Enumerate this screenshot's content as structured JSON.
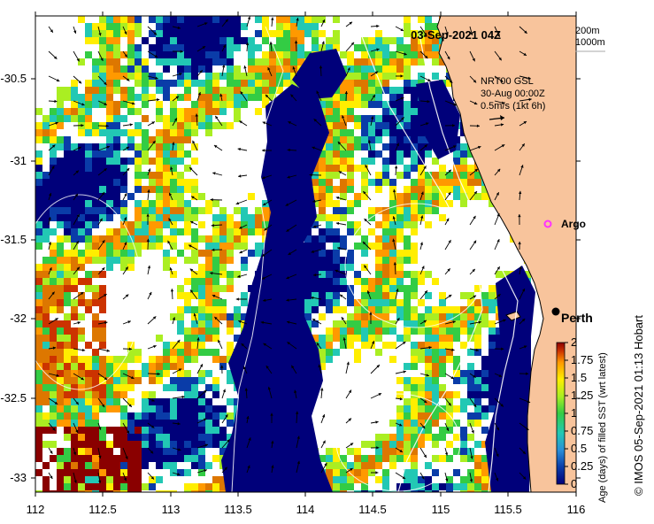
{
  "map": {
    "timestamp": "03-Sep-2021 04Z",
    "depth_contours": [
      "200m",
      "1000m"
    ],
    "current_source": "NRT00 GSL",
    "current_time": "30-Aug 00:00Z",
    "current_scale_label": "0.5m/s (1kt 6h)",
    "places": {
      "argo": "Argo",
      "perth": "Perth"
    },
    "credit": "© IMOS 05-Sep-2021 01:13 Hobart",
    "colorbar": {
      "label": "Age (days) of filled SST (wrt latest)",
      "min": 0,
      "max": 2,
      "ticks": [
        "2",
        "1.75",
        "1.5",
        "1.25",
        "1",
        "0.75",
        "0.5",
        "0.25",
        "0"
      ],
      "colors": [
        "#00007a",
        "#0a3ca8",
        "#2a8fd8",
        "#22c8b4",
        "#33cc44",
        "#aaee22",
        "#ffee00",
        "#ff9900",
        "#cc3300",
        "#8a0000"
      ]
    },
    "x_axis": {
      "ticks": [
        "112",
        "112.5",
        "113",
        "113.5",
        "114",
        "114.5",
        "115",
        "115.5",
        "116"
      ]
    },
    "y_axis": {
      "ticks": [
        "-30.5",
        "-31",
        "-31.5",
        "-32",
        "-32.5",
        "-33"
      ]
    },
    "colors": {
      "land": "#f8c49c",
      "ocean_nodata": "#ffffff",
      "argo_marker": "#ff33ff"
    }
  }
}
